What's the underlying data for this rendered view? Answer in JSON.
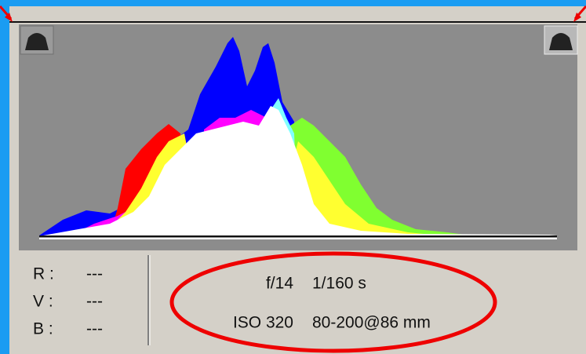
{
  "readout": {
    "rows": [
      {
        "label": "R :",
        "value": "---"
      },
      {
        "label": "V :",
        "value": "---"
      },
      {
        "label": "B :",
        "value": "---"
      }
    ]
  },
  "exposure": {
    "aperture": "f/14",
    "shutter": "1/160 s",
    "iso": "ISO 320",
    "lens": "80-200@86 mm"
  }
}
